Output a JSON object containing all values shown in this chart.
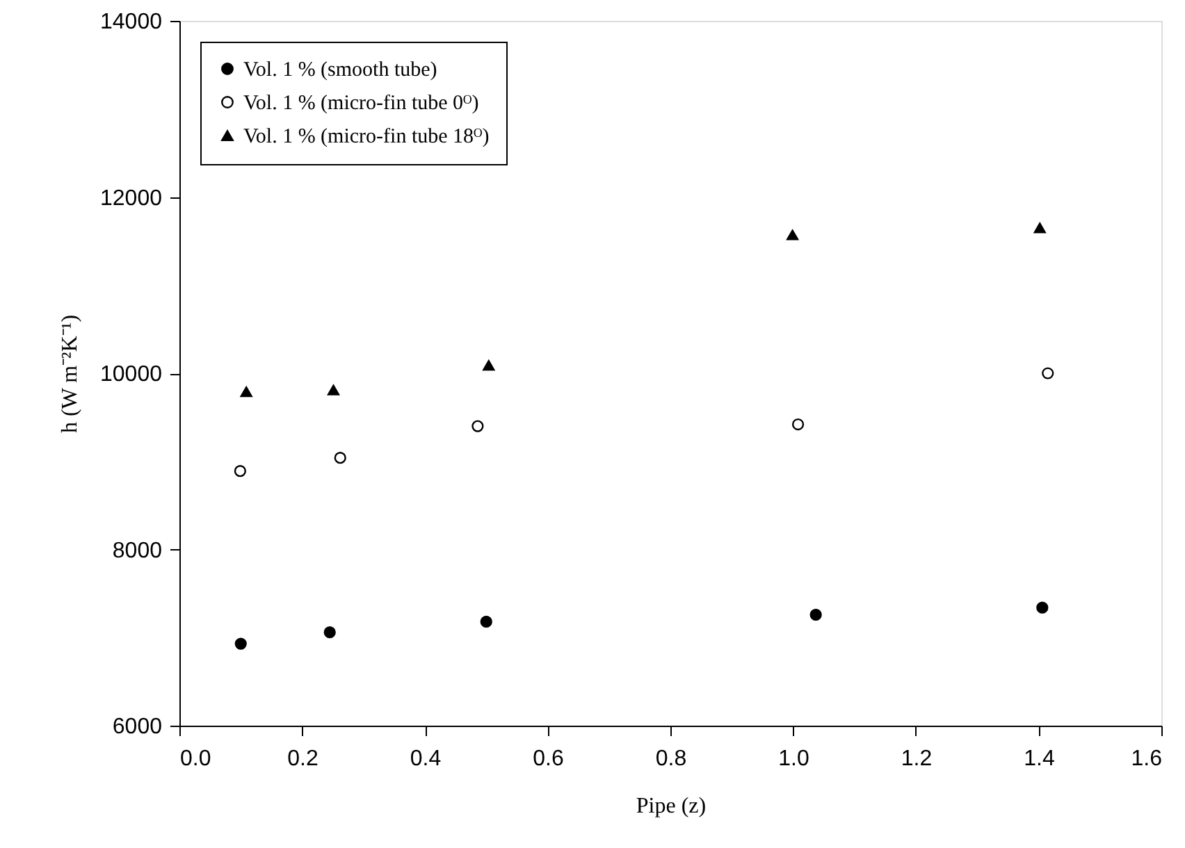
{
  "chart_data": {
    "type": "scatter",
    "xlabel": "Pipe (z)",
    "ylabel": "h (W m⁻²K⁻¹)",
    "xlim": [
      0.0,
      1.6
    ],
    "xticks": [
      {
        "value": 0,
        "label": "0.0"
      },
      0.2,
      0.4,
      0.6,
      0.8,
      {
        "value": 1,
        "label": "1.0"
      },
      1.2,
      1.4,
      1.6
    ],
    "ylim": [
      6000,
      14000
    ],
    "yticks": [
      6000,
      8000,
      10000,
      12000,
      14000
    ],
    "grid": false,
    "legend": "top left",
    "series": [
      {
        "name": "Vol. 1 % (smooth tube)",
        "color": "#000000",
        "marker": "circle",
        "x": [
          0.1,
          0.245,
          0.5,
          1.037,
          1.406
        ],
        "values": [
          6930,
          7060,
          7180,
          7260,
          7340
        ]
      },
      {
        "name": "Vol. 1 % (micro-fin tube 0ᴼ)",
        "color": "#ffffff",
        "marker": "circle",
        "x": [
          0.099,
          0.262,
          0.486,
          1.008,
          1.415
        ],
        "values": [
          8890,
          9040,
          9400,
          9420,
          10000
        ]
      },
      {
        "name": "Vol. 1 % (micro-fin tube 18ᴼ)",
        "color": "#000000",
        "marker": "triangle",
        "x": [
          0.109,
          0.251,
          0.504,
          0.999,
          1.402
        ],
        "values": [
          9790,
          9810,
          10090,
          11570,
          11650
        ]
      }
    ]
  }
}
